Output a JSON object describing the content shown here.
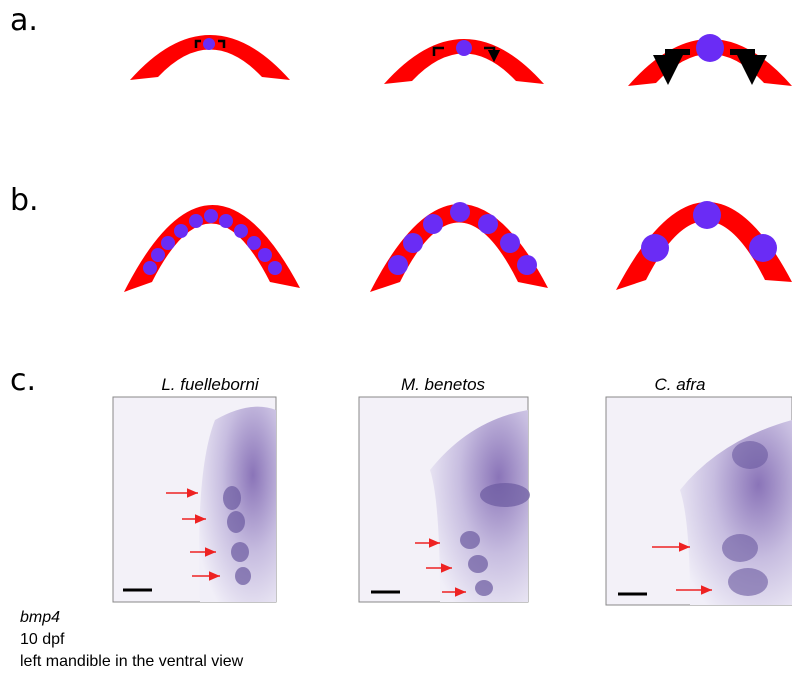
{
  "panels": [
    {
      "label": "a."
    },
    {
      "label": "b."
    },
    {
      "label": "c.",
      "species": [
        "L. fuelleborni",
        "M. benetos",
        "C. afra"
      ]
    }
  ],
  "caption": {
    "gene": "bmp4",
    "stage": "10 dpf",
    "view": "left mandible in the ventral view"
  }
}
